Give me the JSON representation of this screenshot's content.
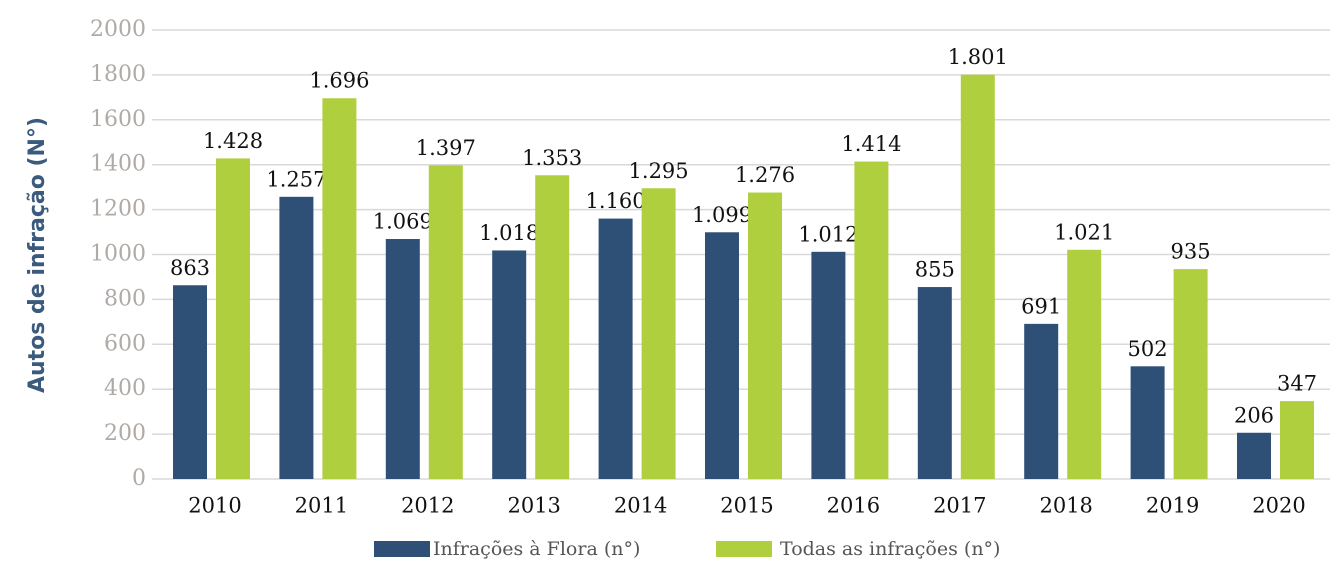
{
  "chart_data": {
    "type": "bar",
    "y_label": "Autos de infração (N°)",
    "categories": [
      "2010",
      "2011",
      "2012",
      "2013",
      "2014",
      "2015",
      "2016",
      "2017",
      "2018",
      "2019",
      "2020"
    ],
    "series": [
      {
        "name": "Infrações à Flora (n°)",
        "color": "#2e5077",
        "values": [
          863,
          1257,
          1069,
          1018,
          1160,
          1099,
          1012,
          855,
          691,
          502,
          206
        ],
        "value_labels": [
          "863",
          "1.257",
          "1.069",
          "1.018",
          "1.160",
          "1.099",
          "1.012",
          "855",
          "691",
          "502",
          "206"
        ]
      },
      {
        "name": "Todas as infrações (n°)",
        "color": "#b0cf3f",
        "values": [
          1428,
          1696,
          1397,
          1353,
          1295,
          1276,
          1414,
          1801,
          1021,
          935,
          347
        ],
        "value_labels": [
          "1.428",
          "1.696",
          "1.397",
          "1.353",
          "1.295",
          "1.276",
          "1.414",
          "1.801",
          "1.021",
          "935",
          "347"
        ]
      }
    ],
    "ylim": [
      0,
      2000
    ],
    "yticks": [
      0,
      200,
      400,
      600,
      800,
      1000,
      1200,
      1400,
      1600,
      1800,
      2000
    ],
    "grid": true,
    "legend": "bottom"
  }
}
